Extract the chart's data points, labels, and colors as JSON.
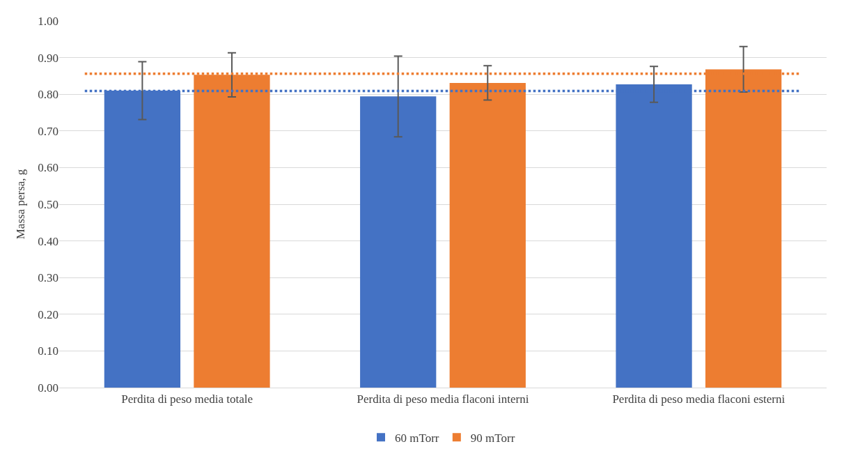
{
  "chart_data": {
    "type": "bar",
    "ylabel": "Massa persa, g",
    "categories": [
      "Perdita di peso media totale",
      "Perdita di peso media flaconi interni",
      "Perdita di peso media flaconi esterni"
    ],
    "series": [
      {
        "name": "60 mTorr",
        "color": "#4472c4",
        "values": [
          0.81,
          0.794,
          0.827
        ],
        "errors": [
          0.079,
          0.11,
          0.049
        ]
      },
      {
        "name": "90 mTorr",
        "color": "#ed7d31",
        "values": [
          0.853,
          0.831,
          0.868
        ],
        "errors": [
          0.06,
          0.047,
          0.062
        ]
      }
    ],
    "ylim": [
      0,
      1
    ],
    "yticks": [
      {
        "value": 0,
        "label": "0.00"
      },
      {
        "value": 0.1,
        "label": "0.10"
      },
      {
        "value": 0.2,
        "label": "0.20"
      },
      {
        "value": 0.3,
        "label": "0.30"
      },
      {
        "value": 0.4,
        "label": "0.40"
      },
      {
        "value": 0.5,
        "label": "0.50"
      },
      {
        "value": 0.6,
        "label": "0.60"
      },
      {
        "value": 0.7,
        "label": "0.70"
      },
      {
        "value": 0.8,
        "label": "0.80"
      },
      {
        "value": 0.9,
        "label": "0.90"
      },
      {
        "value": 1,
        "label": "1.00"
      }
    ],
    "ref_lines": [
      {
        "axis": "y",
        "value": 0.809,
        "color": "#4472c4",
        "line_style": "dotted"
      },
      {
        "axis": "y",
        "value": 0.856,
        "color": "#ed7d31",
        "line_style": "dotted"
      }
    ],
    "grid": "y",
    "legend": "bottom"
  }
}
